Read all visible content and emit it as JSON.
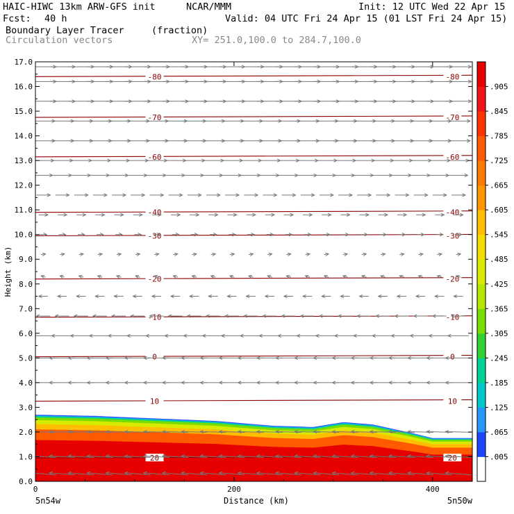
{
  "header": {
    "model": "HAIC-HIWC 13km ARW-GFS init",
    "org": "NCAR/MMM",
    "init": "Init: 12 UTC Wed 22 Apr 15",
    "fcst_label": "Fcst:",
    "fcst_value": "40 h",
    "valid": "Valid: 04 UTC Fri 24 Apr 15 (01 LST Fri 24 Apr 15)",
    "field_name": "Boundary Layer Tracer",
    "field_unit": "(fraction)",
    "vector_label": "Circulation vectors",
    "xy_label": "XY= 251.0,100.0 to 284.7,100.0"
  },
  "chart_data": {
    "type": "heatmap",
    "xlabel": "Distance (km)",
    "ylabel": "Height (km)",
    "xlim": [
      0,
      440
    ],
    "ylim": [
      0,
      17
    ],
    "x_ticks": [
      "0",
      "200",
      "400"
    ],
    "y_ticks": [
      "0.0",
      "1.0",
      "2.0",
      "3.0",
      "4.0",
      "5.0",
      "6.0",
      "7.0",
      "8.0",
      "9.0",
      "10.0",
      "11.0",
      "12.0",
      "13.0",
      "14.0",
      "15.0",
      "16.0",
      "17.0"
    ],
    "x_end_labels": [
      "5n54w",
      "5n50w"
    ],
    "tracer_top_profile": {
      "x": [
        0,
        60,
        120,
        180,
        240,
        280,
        310,
        340,
        380,
        400,
        440
      ],
      "top": [
        2.7,
        2.65,
        2.55,
        2.45,
        2.25,
        2.2,
        2.4,
        2.3,
        1.95,
        1.75,
        1.75
      ]
    },
    "colorbar": {
      "labels": [
        ".005",
        ".065",
        ".125",
        ".185",
        ".245",
        ".305",
        ".365",
        ".425",
        ".485",
        ".545",
        ".605",
        ".665",
        ".725",
        ".785",
        ".845",
        ".905"
      ],
      "colors": [
        "#ffffff",
        "#1e46ff",
        "#2896ff",
        "#00c8c8",
        "#00d296",
        "#32d232",
        "#78dc00",
        "#b4e600",
        "#d7eb00",
        "#f5dc00",
        "#ffbe00",
        "#ff9600",
        "#ff7800",
        "#ff5a00",
        "#ff3200",
        "#f01414",
        "#e60000"
      ]
    },
    "temperature_contours": {
      "levels": [
        20,
        10,
        0,
        -10,
        -20,
        -30,
        -40,
        -60,
        -70,
        -80
      ],
      "heights": [
        0.95,
        3.25,
        5.05,
        6.65,
        8.2,
        9.95,
        10.9,
        13.15,
        14.75,
        16.4
      ],
      "color": "#8b0000"
    },
    "vectors": {
      "rows": [
        {
          "y": 0.3,
          "u": -1,
          "w": 0.15
        },
        {
          "y": 1.0,
          "u": -1,
          "w": 0.1
        },
        {
          "y": 2.0,
          "u": -1,
          "w": 0.05
        },
        {
          "y": 4.0,
          "u": -1,
          "w": 0
        },
        {
          "y": 5.0,
          "u": -1,
          "w": 0
        },
        {
          "y": 5.9,
          "u": -0.8,
          "w": 0
        },
        {
          "y": 6.7,
          "u": -0.5,
          "w": 0
        },
        {
          "y": 7.5,
          "u": -0.3,
          "w": 0
        },
        {
          "y": 8.3,
          "u": -0.1,
          "w": 0.1
        },
        {
          "y": 9.2,
          "u": 0.1,
          "w": 0.05
        },
        {
          "y": 10.0,
          "u": 0.2,
          "w": 0
        },
        {
          "y": 10.8,
          "u": 0.3,
          "w": 0
        },
        {
          "y": 11.6,
          "u": 0.5,
          "w": 0
        },
        {
          "y": 12.4,
          "u": 0.7,
          "w": 0
        },
        {
          "y": 13.0,
          "u": 0.8,
          "w": 0
        },
        {
          "y": 13.8,
          "u": 0.9,
          "w": 0
        },
        {
          "y": 14.6,
          "u": 0.9,
          "w": 0
        },
        {
          "y": 15.4,
          "u": 1,
          "w": 0
        },
        {
          "y": 16.2,
          "u": 1,
          "w": 0
        },
        {
          "y": 16.8,
          "u": 1,
          "w": 0
        }
      ]
    }
  }
}
